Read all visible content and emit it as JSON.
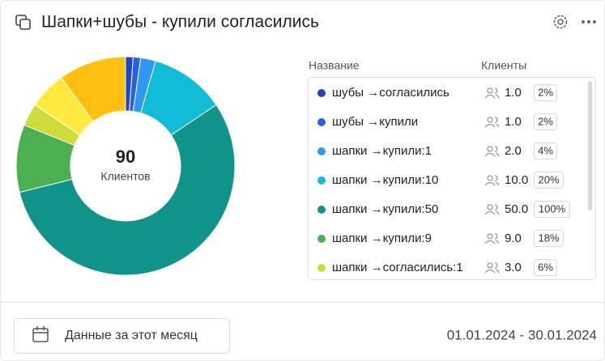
{
  "header": {
    "title": "Шапки+шубы - купили согласились"
  },
  "chart_data": {
    "type": "donut",
    "total": 90,
    "total_label": "Клиентов",
    "column_headers": [
      "Название",
      "Клиенты"
    ],
    "categories": [
      "шубы →согласились",
      "шубы →купили",
      "шапки →купили:1",
      "шапки →купили:10",
      "шапки →купили:50",
      "шапки →купили:9",
      "шапки →согласились:1",
      null,
      null
    ],
    "values": [
      1,
      1,
      2,
      10,
      50,
      9,
      3,
      5,
      9
    ],
    "value_labels": [
      "1.0",
      "1.0",
      "2.0",
      "10.0",
      "50.0",
      "9.0",
      "3.0",
      null,
      null
    ],
    "shares": [
      "2%",
      "2%",
      "4%",
      "20%",
      "100%",
      "18%",
      "6%",
      null,
      null
    ],
    "colors": [
      "#1e47b8",
      "#2a5fe0",
      "#2e98f2",
      "#11bcd6",
      "#10948a",
      "#4caf50",
      "#cddc39",
      "#fde93f",
      "#fdc010"
    ]
  },
  "footer": {
    "button": "Данные за этот месяц",
    "date_range": "01.01.2024 - 30.01.2024"
  }
}
